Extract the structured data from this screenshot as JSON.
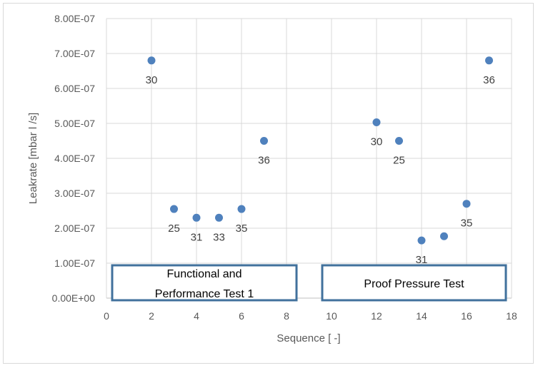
{
  "chart_data": {
    "type": "scatter",
    "xlabel": "Sequence [ -]",
    "ylabel": "Leakrate [mbar l /s]",
    "xlim": [
      0,
      18
    ],
    "ylim": [
      0,
      8e-07
    ],
    "x_ticks": [
      "0",
      "2",
      "4",
      "6",
      "8",
      "10",
      "12",
      "14",
      "16",
      "18"
    ],
    "y_ticks": [
      "0.00E+00",
      "1.00E-07",
      "2.00E-07",
      "3.00E-07",
      "4.00E-07",
      "5.00E-07",
      "6.00E-07",
      "7.00E-07",
      "8.00E-07"
    ],
    "grid": true,
    "marker_color": "#4f81bd",
    "series": [
      {
        "points": [
          {
            "x": 2,
            "y": 6.8e-07,
            "label": "30"
          },
          {
            "x": 3,
            "y": 2.55e-07,
            "label": "25"
          },
          {
            "x": 4,
            "y": 2.3e-07,
            "label": "31"
          },
          {
            "x": 5,
            "y": 2.3e-07,
            "label": "33"
          },
          {
            "x": 6,
            "y": 2.55e-07,
            "label": "35"
          },
          {
            "x": 7,
            "y": 4.5e-07,
            "label": "36"
          },
          {
            "x": 12,
            "y": 5.03e-07,
            "label": "30"
          },
          {
            "x": 13,
            "y": 4.5e-07,
            "label": "25"
          },
          {
            "x": 14,
            "y": 1.65e-07,
            "label": "31"
          },
          {
            "x": 15,
            "y": 1.77e-07,
            "label": ""
          },
          {
            "x": 16,
            "y": 2.7e-07,
            "label": "35"
          },
          {
            "x": 17,
            "y": 6.8e-07,
            "label": "36"
          }
        ]
      }
    ],
    "annotations": [
      {
        "lines": [
          "Functional and",
          "Performance Test 1"
        ]
      },
      {
        "lines": [
          "Proof Pressure Test"
        ]
      }
    ]
  }
}
